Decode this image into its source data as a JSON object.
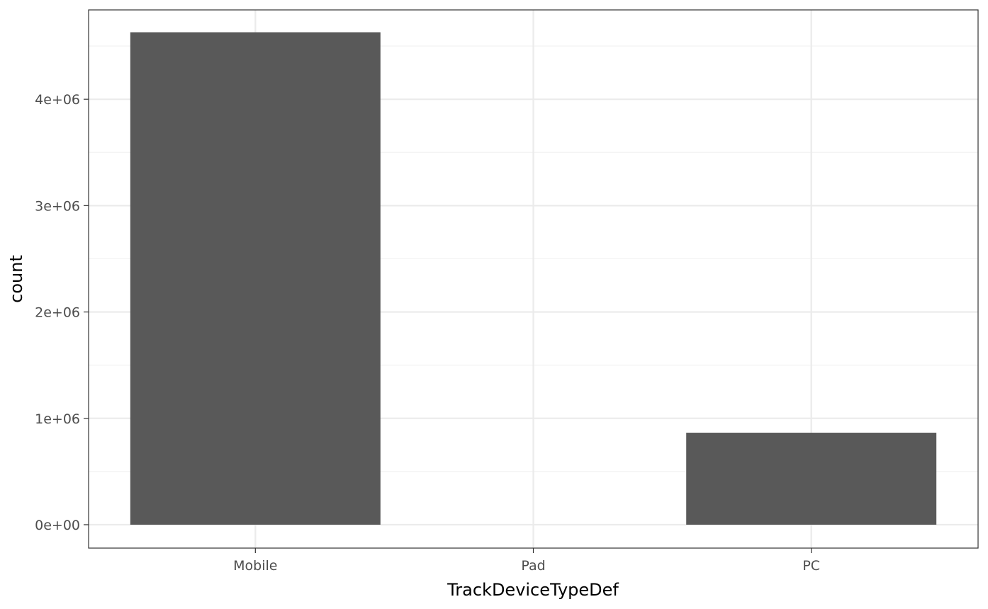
{
  "chart_data": {
    "type": "bar",
    "xlabel": "TrackDeviceTypeDef",
    "ylabel": "count",
    "categories": [
      "Mobile",
      "Pad",
      "PC"
    ],
    "values": [
      4630000,
      0,
      865000
    ],
    "ylim": [
      -220000,
      4840000
    ],
    "yticks": [
      0,
      1000000,
      2000000,
      3000000,
      4000000
    ],
    "ytick_labels": [
      "0e+00",
      "1e+06",
      "2e+06",
      "3e+06",
      "4e+06"
    ],
    "grid": true,
    "legend": "none",
    "colors": {
      "bar": "#595959",
      "grid_major": "#ebebeb",
      "grid_minor": "#f2f2f2",
      "panel_border": "#333333"
    }
  }
}
